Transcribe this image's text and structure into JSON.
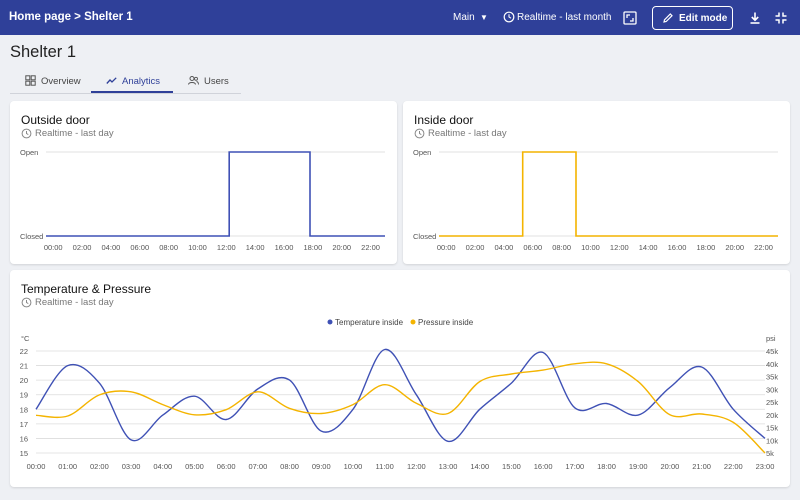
{
  "header": {
    "breadcrumb": "Home page > Shelter 1",
    "dashboard_state": "Main",
    "timewindow": "Realtime - last month",
    "edit_label": "Edit mode"
  },
  "page": {
    "title": "Shelter 1",
    "tabs": [
      {
        "label": "Overview",
        "icon": "grid-icon",
        "active": false
      },
      {
        "label": "Analytics",
        "icon": "trend-icon",
        "active": true
      },
      {
        "label": "Users",
        "icon": "users-icon",
        "active": false
      }
    ]
  },
  "colors": {
    "accent": "#2f4099",
    "series_blue": "#3f51b5",
    "series_orange": "#f4b400"
  },
  "widgets": {
    "outside": {
      "title": "Outside door",
      "subtitle": "Realtime - last day"
    },
    "inside": {
      "title": "Inside door",
      "subtitle": "Realtime - last day"
    },
    "temp": {
      "title": "Temperature & Pressure",
      "subtitle": "Realtime - last day"
    }
  },
  "chart_data": [
    {
      "type": "line",
      "title": "Outside door",
      "step": true,
      "y_categories": [
        "Closed",
        "Open"
      ],
      "x_ticks": [
        "00:00",
        "02:00",
        "04:00",
        "06:00",
        "08:00",
        "10:00",
        "12:00",
        "14:00",
        "16:00",
        "18:00",
        "20:00",
        "22:00"
      ],
      "xlim": [
        -0.5,
        23
      ],
      "series": [
        {
          "color": "#3f51b5",
          "x": [
            -0.5,
            12.2,
            12.2,
            17.8,
            17.8,
            23
          ],
          "y": [
            0,
            0,
            1,
            1,
            0,
            0
          ]
        }
      ],
      "grid": true
    },
    {
      "type": "line",
      "title": "Inside door",
      "step": true,
      "y_categories": [
        "Closed",
        "Open"
      ],
      "x_ticks": [
        "00:00",
        "02:00",
        "04:00",
        "06:00",
        "08:00",
        "10:00",
        "12:00",
        "14:00",
        "16:00",
        "18:00",
        "20:00",
        "22:00"
      ],
      "xlim": [
        -0.5,
        23
      ],
      "series": [
        {
          "color": "#f4b400",
          "x": [
            -0.5,
            5.3,
            5.3,
            9.0,
            9.0,
            23
          ],
          "y": [
            0,
            0,
            1,
            1,
            0,
            0
          ]
        }
      ],
      "grid": true
    },
    {
      "type": "line",
      "title": "Temperature & Pressure",
      "x_ticks": [
        "00:00",
        "01:00",
        "02:00",
        "03:00",
        "04:00",
        "05:00",
        "06:00",
        "07:00",
        "08:00",
        "09:00",
        "10:00",
        "11:00",
        "12:00",
        "13:00",
        "14:00",
        "15:00",
        "16:00",
        "17:00",
        "18:00",
        "19:00",
        "20:00",
        "21:00",
        "22:00",
        "23:00"
      ],
      "y_left": {
        "unit": "°C",
        "ticks": [
          "15",
          "16",
          "17",
          "18",
          "19",
          "20",
          "21",
          "22"
        ],
        "ylim": [
          15,
          22
        ]
      },
      "y_right": {
        "unit": "psi",
        "ticks": [
          "5k",
          "10k",
          "15k",
          "20k",
          "25k",
          "30k",
          "35k",
          "40k",
          "45k"
        ],
        "ylim": [
          5000,
          45000
        ]
      },
      "legend": "top-center",
      "grid": true,
      "series": [
        {
          "name": "Temperature inside",
          "color": "#3f51b5",
          "axis": "left",
          "x": [
            0,
            1,
            2,
            3,
            4,
            5,
            6,
            7,
            8,
            9,
            10,
            11,
            12,
            13,
            14,
            15,
            16,
            17,
            18,
            19,
            20,
            21,
            22,
            23
          ],
          "y": [
            18,
            21,
            19.8,
            15.9,
            17.6,
            18.9,
            17.3,
            19.4,
            20,
            16.5,
            18,
            22.1,
            19,
            15.8,
            18,
            19.8,
            21.9,
            18.1,
            18.4,
            17.6,
            19.5,
            20.9,
            18,
            16
          ]
        },
        {
          "name": "Pressure inside",
          "color": "#f4b400",
          "axis": "right",
          "x": [
            0,
            1,
            2,
            3,
            4,
            5,
            6,
            7,
            8,
            9,
            10,
            11,
            12,
            13,
            14,
            15,
            16,
            17,
            18,
            19,
            20,
            21,
            22,
            23
          ],
          "y": [
            19800,
            19500,
            27800,
            29000,
            24000,
            20000,
            22000,
            29000,
            22500,
            20500,
            24000,
            31800,
            24500,
            20500,
            33000,
            36000,
            37500,
            40000,
            40000,
            33000,
            20000,
            20300,
            17000,
            5000
          ]
        }
      ]
    }
  ]
}
